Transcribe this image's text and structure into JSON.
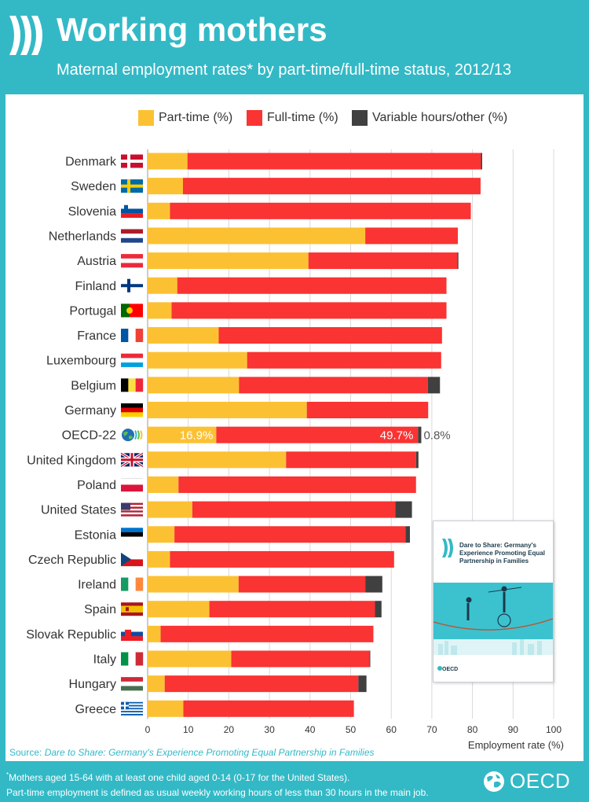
{
  "header": {
    "title": "Working mothers",
    "subtitle": "Maternal employment rates* by part-time/full-time status, 2012/13"
  },
  "colors": {
    "teal": "#33b9c6",
    "part_time": "#fcc133",
    "full_time": "#fa3333",
    "variable": "#404040"
  },
  "legend": {
    "items": [
      {
        "label": "Part-time (%)",
        "color": "#fcc133"
      },
      {
        "label": "Full-time (%)",
        "color": "#fa3333"
      },
      {
        "label": "Variable hours/other (%)",
        "color": "#404040"
      }
    ]
  },
  "chart_data": {
    "type": "bar",
    "orientation": "horizontal",
    "stacked": true,
    "categories": [
      "Denmark",
      "Sweden",
      "Slovenia",
      "Netherlands",
      "Austria",
      "Finland",
      "Portugal",
      "France",
      "Luxembourg",
      "Belgium",
      "Germany",
      "OECD-22",
      "United Kingdom",
      "Poland",
      "United States",
      "Estonia",
      "Czech Republic",
      "Ireland",
      "Spain",
      "Slovak Republic",
      "Italy",
      "Hungary",
      "Greece"
    ],
    "flags": [
      "denmark-flag-icon",
      "sweden-flag-icon",
      "slovenia-flag-icon",
      "netherlands-flag-icon",
      "austria-flag-icon",
      "finland-flag-icon",
      "portugal-flag-icon",
      "france-flag-icon",
      "luxembourg-flag-icon",
      "belgium-flag-icon",
      "germany-flag-icon",
      "oecd-globe-icon",
      "uk-flag-icon",
      "poland-flag-icon",
      "us-flag-icon",
      "estonia-flag-icon",
      "czech-flag-icon",
      "ireland-flag-icon",
      "spain-flag-icon",
      "slovakia-flag-icon",
      "italy-flag-icon",
      "hungary-flag-icon",
      "greece-flag-icon"
    ],
    "series": [
      {
        "name": "Part-time (%)",
        "color": "#fcc133",
        "values": [
          9.8,
          8.7,
          5.5,
          53.6,
          39.6,
          7.3,
          5.9,
          17.5,
          24.5,
          22.5,
          39.2,
          16.9,
          34.1,
          7.6,
          11.0,
          6.6,
          5.5,
          22.4,
          15.2,
          3.2,
          20.6,
          4.2,
          8.8
        ]
      },
      {
        "name": "Full-time (%)",
        "color": "#fa3333",
        "values": [
          72.3,
          73.3,
          74.1,
          22.8,
          36.7,
          66.3,
          67.7,
          55.0,
          47.8,
          46.5,
          29.9,
          49.7,
          32.0,
          58.5,
          50.0,
          56.9,
          55.2,
          31.2,
          40.8,
          52.4,
          34.0,
          47.7,
          42.0
        ]
      },
      {
        "name": "Variable hours/other (%)",
        "color": "#404040",
        "values": [
          0.3,
          0,
          0,
          0,
          0.2,
          0,
          0,
          0,
          0,
          3.0,
          0,
          0.8,
          0.6,
          0,
          4.1,
          1.1,
          0,
          4.2,
          1.6,
          0,
          0.2,
          2.0,
          0
        ]
      }
    ],
    "data_labels": {
      "OECD-22": [
        "16.9%",
        "49.7%",
        "0.8%"
      ]
    },
    "xlabel": "Employment rate (%)",
    "xlim": [
      0,
      100
    ],
    "xticks": [
      "0",
      "10",
      "20",
      "30",
      "40",
      "50",
      "60",
      "70",
      "80",
      "90",
      "100"
    ],
    "grid": true,
    "legend_position": "top"
  },
  "book": {
    "title": "Dare to Share: Germany's Experience Promoting Equal Partnership in Families",
    "brand": "OECD"
  },
  "source": {
    "prefix": "Source: ",
    "title": "Dare to Share: Germany's Experience Promoting Equal Partnership in Families"
  },
  "footnotes": {
    "line1_marker": "*",
    "line1": "Mothers aged 15-64 with at least one child aged 0-14 (0-17 for the United States).",
    "line2": "Part-time employment is defined as usual weekly working hours of less than 30 hours in the main job."
  },
  "branding": {
    "logo_text": "OECD"
  }
}
